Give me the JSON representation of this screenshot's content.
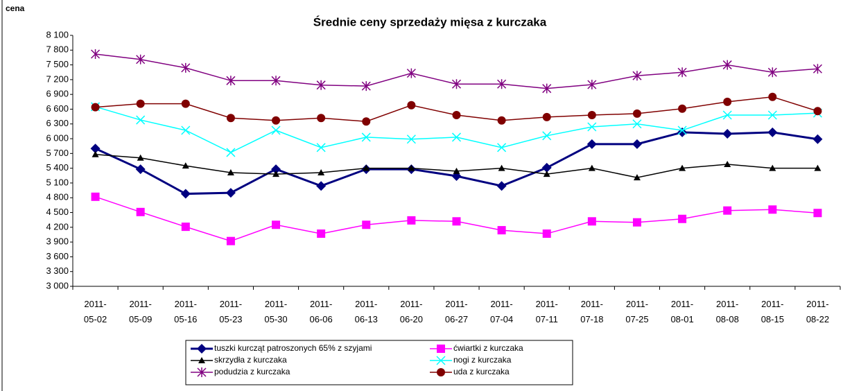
{
  "chart_data": {
    "type": "line",
    "title": "Średnie ceny sprzedaży mięsa z kurczaka",
    "y_label": "cena",
    "categories": [
      "2011-05-02",
      "2011-05-09",
      "2011-05-16",
      "2011-05-23",
      "2011-05-30",
      "2011-06-06",
      "2011-06-13",
      "2011-06-20",
      "2011-06-27",
      "2011-07-04",
      "2011-07-11",
      "2011-07-18",
      "2011-07-25",
      "2011-08-01",
      "2011-08-08",
      "2011-08-15",
      "2011-08-22"
    ],
    "series": [
      {
        "name": "tuszki kurcząt patroszonych 65% z szyjami",
        "color": "#000080",
        "marker": "diamond",
        "values": [
          5800,
          5380,
          4880,
          4900,
          5380,
          5040,
          5380,
          5380,
          5240,
          5040,
          5410,
          5890,
          5890,
          6130,
          6100,
          6130,
          5990
        ]
      },
      {
        "name": "ćwiartki z kurczaka",
        "color": "#ff00ff",
        "marker": "square",
        "values": [
          4820,
          4510,
          4210,
          3920,
          4250,
          4070,
          4250,
          4340,
          4320,
          4140,
          4070,
          4320,
          4300,
          4370,
          4540,
          4560,
          4490
        ]
      },
      {
        "name": "skrzydła z kurczaka",
        "color": "#000000",
        "marker": "triangle",
        "values": [
          5680,
          5610,
          5450,
          5310,
          5280,
          5310,
          5400,
          5400,
          5340,
          5400,
          5280,
          5400,
          5210,
          5400,
          5480,
          5400,
          5400
        ]
      },
      {
        "name": "nogi z kurczaka",
        "color": "#00ffff",
        "marker": "x",
        "values": [
          6650,
          6380,
          6170,
          5720,
          6170,
          5820,
          6030,
          5990,
          6030,
          5820,
          6060,
          6240,
          6300,
          6170,
          6480,
          6480,
          6520
        ]
      },
      {
        "name": "podudzia z kurczaka",
        "color": "#800080",
        "marker": "star",
        "values": [
          7720,
          7610,
          7440,
          7180,
          7180,
          7090,
          7070,
          7330,
          7110,
          7110,
          7020,
          7100,
          7280,
          7350,
          7500,
          7350,
          7420
        ]
      },
      {
        "name": "uda z kurczaka",
        "color": "#800000",
        "marker": "circle",
        "values": [
          6640,
          6710,
          6710,
          6420,
          6370,
          6420,
          6350,
          6680,
          6480,
          6370,
          6440,
          6480,
          6510,
          6610,
          6750,
          6850,
          6560
        ]
      }
    ],
    "ylim": [
      3000,
      8100
    ],
    "yticks": [
      {
        "value": 3000,
        "label": "3 000"
      },
      {
        "value": 3300,
        "label": "3 300"
      },
      {
        "value": 3600,
        "label": "3 600"
      },
      {
        "value": 3900,
        "label": "3 900"
      },
      {
        "value": 4200,
        "label": "4 200"
      },
      {
        "value": 4500,
        "label": "4 500"
      },
      {
        "value": 4800,
        "label": "4 800"
      },
      {
        "value": 5100,
        "label": "5 100"
      },
      {
        "value": 5400,
        "label": "5 400"
      },
      {
        "value": 5700,
        "label": "5 700"
      },
      {
        "value": 6000,
        "label": "6 000"
      },
      {
        "value": 6300,
        "label": "6 300"
      },
      {
        "value": 6600,
        "label": "6 600"
      },
      {
        "value": 6900,
        "label": "6 900"
      },
      {
        "value": 7200,
        "label": "7 200"
      },
      {
        "value": 7500,
        "label": "7 500"
      },
      {
        "value": 7800,
        "label": "7 800"
      },
      {
        "value": 8100,
        "label": "8 100"
      }
    ],
    "grid": false
  }
}
